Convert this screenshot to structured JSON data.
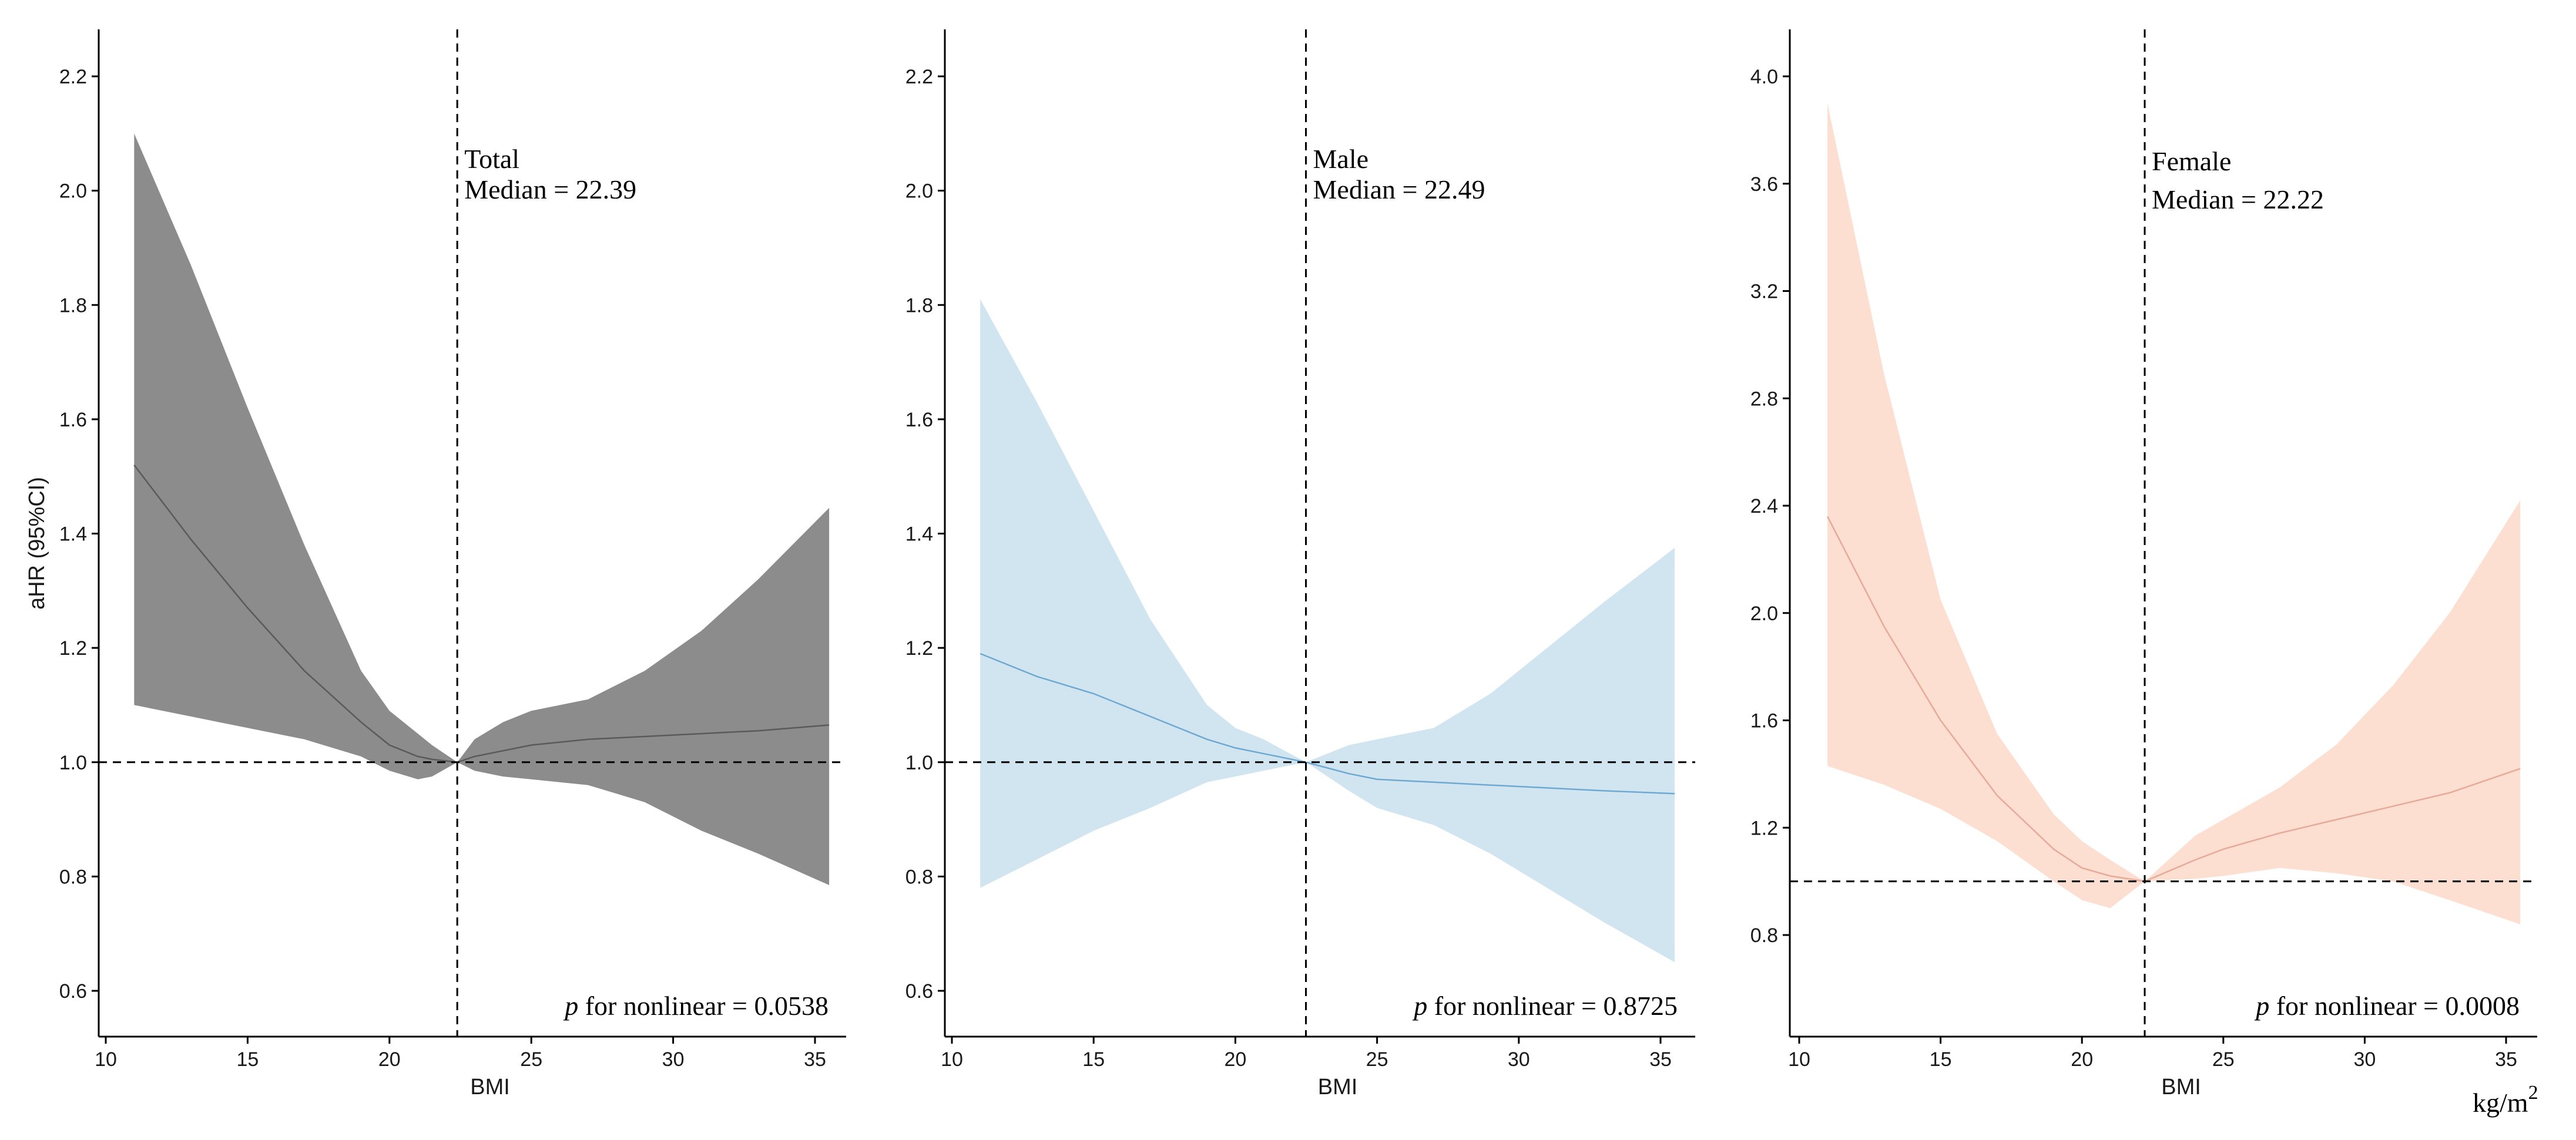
{
  "shared": {
    "ylabel": "aHR (95%CI)",
    "unit_label": "kg/m",
    "unit_superscript": "2"
  },
  "chart_data": [
    {
      "type": "line",
      "panel": "total",
      "xlabel": "BMI",
      "ylabel": "aHR (95%CI)",
      "xlim": [
        10,
        37
      ],
      "ylim": [
        0.52,
        2.28
      ],
      "xticks": [
        10,
        15,
        20,
        25,
        30,
        35
      ],
      "yticks": [
        0.6,
        0.8,
        1.0,
        1.2,
        1.4,
        1.6,
        1.8,
        2.0,
        2.2
      ],
      "ytick_labels": [
        "0.6",
        "0.8",
        "1.0",
        "1.2",
        "1.4",
        "1.6",
        "1.8",
        "2.0",
        "2.2"
      ],
      "ref_y": 1.0,
      "median": 22.39,
      "annotation_title": "Total",
      "annotation_median": "Median = 22.39",
      "p_prefix": "p",
      "p_text": " for nonlinear = 0.0538",
      "band_color": "#7f7f7f",
      "band_opacity": 0.9,
      "line_color": "#5a5a5a",
      "x": [
        11,
        13,
        15,
        17,
        19,
        20,
        21,
        21.5,
        22.39,
        23,
        24,
        25,
        27,
        29,
        31,
        33,
        35.5
      ],
      "y": [
        1.52,
        1.39,
        1.27,
        1.16,
        1.07,
        1.03,
        1.01,
        1.005,
        1.0,
        1.01,
        1.02,
        1.03,
        1.04,
        1.045,
        1.05,
        1.055,
        1.065
      ],
      "lower": [
        1.1,
        1.08,
        1.06,
        1.04,
        1.01,
        0.985,
        0.97,
        0.975,
        1.0,
        0.985,
        0.975,
        0.97,
        0.96,
        0.93,
        0.88,
        0.84,
        0.785
      ],
      "upper": [
        2.1,
        1.87,
        1.62,
        1.38,
        1.16,
        1.09,
        1.05,
        1.03,
        1.0,
        1.04,
        1.07,
        1.09,
        1.11,
        1.16,
        1.23,
        1.32,
        1.445
      ]
    },
    {
      "type": "line",
      "panel": "male",
      "xlabel": "BMI",
      "xlim": [
        10,
        37
      ],
      "ylim": [
        0.52,
        2.28
      ],
      "xticks": [
        10,
        15,
        20,
        25,
        30,
        35
      ],
      "yticks": [
        0.6,
        0.8,
        1.0,
        1.2,
        1.4,
        1.6,
        1.8,
        2.0,
        2.2
      ],
      "ytick_labels": [
        "0.6",
        "0.8",
        "1.0",
        "1.2",
        "1.4",
        "1.6",
        "1.8",
        "2.0",
        "2.2"
      ],
      "ref_y": 1.0,
      "median": 22.49,
      "annotation_title": "Male",
      "annotation_median": "Median = 22.49",
      "p_prefix": "p",
      "p_text": " for nonlinear = 0.8725",
      "band_color": "#c9e0ef",
      "band_opacity": 0.85,
      "line_color": "#6fa8d0",
      "x": [
        11,
        13,
        15,
        17,
        19,
        20,
        21,
        22.49,
        24,
        25,
        27,
        29,
        31,
        33,
        35.5
      ],
      "y": [
        1.19,
        1.15,
        1.12,
        1.08,
        1.04,
        1.025,
        1.015,
        1.0,
        0.98,
        0.97,
        0.965,
        0.96,
        0.955,
        0.95,
        0.945
      ],
      "lower": [
        0.78,
        0.83,
        0.88,
        0.92,
        0.965,
        0.975,
        0.985,
        1.0,
        0.95,
        0.92,
        0.89,
        0.84,
        0.78,
        0.72,
        0.65
      ],
      "upper": [
        1.81,
        1.63,
        1.44,
        1.25,
        1.1,
        1.06,
        1.04,
        1.0,
        1.03,
        1.04,
        1.06,
        1.12,
        1.2,
        1.28,
        1.375
      ]
    },
    {
      "type": "line",
      "panel": "female",
      "xlabel": "BMI",
      "xlim": [
        10,
        37
      ],
      "ylim": [
        0.45,
        4.2
      ],
      "xticks": [
        10,
        15,
        20,
        25,
        30,
        35
      ],
      "yticks": [
        0.8,
        1.2,
        1.6,
        2.0,
        2.4,
        2.8,
        3.2,
        3.6,
        4.0
      ],
      "ytick_labels": [
        "0.8",
        "1.2",
        "1.6",
        "2.0",
        "2.4",
        "2.8",
        "3.2",
        "3.6",
        "4.0"
      ],
      "ref_y": 1.0,
      "median": 22.22,
      "annotation_title": "Female",
      "annotation_median": "Median = 22.22",
      "p_prefix": "p",
      "p_text": " for nonlinear = 0.0008",
      "band_color": "#fbd9c9",
      "band_opacity": 0.85,
      "line_color": "#e6a99a",
      "x": [
        11,
        13,
        15,
        17,
        19,
        20,
        21,
        22.22,
        24,
        25,
        27,
        29,
        31,
        33,
        35.5
      ],
      "y": [
        2.36,
        1.95,
        1.6,
        1.32,
        1.12,
        1.05,
        1.02,
        1.0,
        1.08,
        1.12,
        1.18,
        1.23,
        1.28,
        1.33,
        1.42
      ],
      "lower": [
        1.43,
        1.36,
        1.27,
        1.15,
        1.0,
        0.93,
        0.9,
        1.0,
        1.01,
        1.02,
        1.05,
        1.03,
        1.0,
        0.93,
        0.84
      ],
      "upper": [
        3.9,
        2.89,
        2.05,
        1.55,
        1.25,
        1.15,
        1.08,
        1.0,
        1.17,
        1.23,
        1.35,
        1.51,
        1.73,
        2.0,
        2.42
      ]
    }
  ]
}
